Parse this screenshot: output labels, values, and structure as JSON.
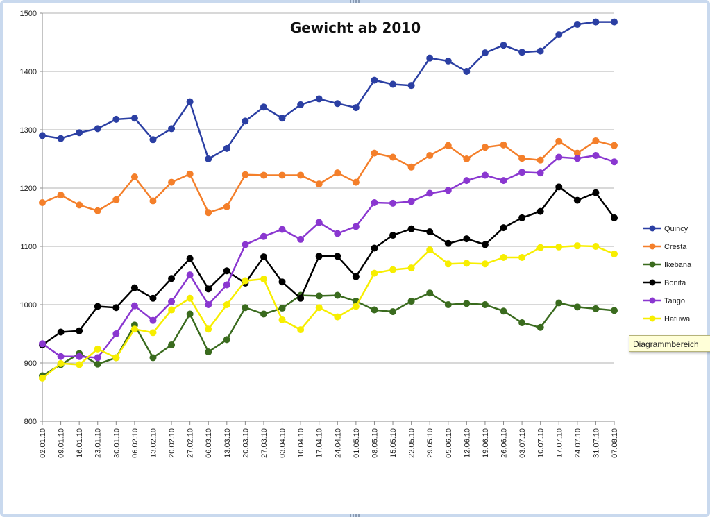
{
  "tooltip": {
    "text": "Diagrammbereich"
  },
  "colors": {
    "frame": "#c9d9ee",
    "grid": "#b0b0b0",
    "axis": "#888888"
  },
  "chart_data": {
    "type": "line",
    "title": "Gewicht ab 2010",
    "xlabel": "",
    "ylabel": "",
    "ylim": [
      800,
      1500
    ],
    "yticks": [
      800,
      900,
      1000,
      1100,
      1200,
      1300,
      1400,
      1500
    ],
    "grid": "horizontal",
    "legend_position": "right",
    "categories": [
      "02.01.10",
      "09.01.10",
      "16.01.10",
      "23.01.10",
      "30.01.10",
      "06.02.10",
      "13.02.10",
      "20.02.10",
      "27.02.10",
      "06.03.10",
      "13.03.10",
      "20.03.10",
      "27.03.10",
      "03.04.10",
      "10.04.10",
      "17.04.10",
      "24.04.10",
      "01.05.10",
      "08.05.10",
      "15.05.10",
      "22.05.10",
      "29.05.10",
      "05.06.10",
      "12.06.10",
      "19.06.10",
      "26.06.10",
      "03.07.10",
      "10.07.10",
      "17.07.10",
      "24.07.10",
      "31.07.10",
      "07.08.10"
    ],
    "series": [
      {
        "name": "Quincy",
        "color": "#2b3fa3",
        "values": [
          1290,
          1285,
          1295,
          1302,
          1318,
          1320,
          1283,
          1302,
          1348,
          1250,
          1268,
          1315,
          1339,
          1320,
          1343,
          1353,
          1345,
          1338,
          1385,
          1378,
          1376,
          1423,
          1418,
          1400,
          1432,
          1445,
          1433,
          1435,
          1463,
          1481,
          1485,
          1485
        ]
      },
      {
        "name": "Cresta",
        "color": "#f47f2a",
        "values": [
          1175,
          1188,
          1171,
          1161,
          1180,
          1219,
          1178,
          1210,
          1224,
          1158,
          1168,
          1223,
          1222,
          1222,
          1222,
          1207,
          1226,
          1210,
          1260,
          1253,
          1236,
          1256,
          1273,
          1250,
          1270,
          1274,
          1251,
          1248,
          1280,
          1260,
          1281,
          1273
        ]
      },
      {
        "name": "Ikebana",
        "color": "#3a6b1e",
        "values": [
          878,
          897,
          916,
          898,
          909,
          965,
          909,
          931,
          984,
          919,
          940,
          995,
          984,
          994,
          1016,
          1015,
          1016,
          1006,
          991,
          988,
          1006,
          1020,
          1000,
          1002,
          1000,
          989,
          969,
          961,
          1003,
          996,
          993,
          990
        ]
      },
      {
        "name": "Bonita",
        "color": "#000000",
        "values": [
          931,
          953,
          955,
          997,
          995,
          1029,
          1011,
          1045,
          1079,
          1027,
          1058,
          1037,
          1082,
          1039,
          1011,
          1083,
          1083,
          1048,
          1097,
          1119,
          1130,
          1125,
          1105,
          1113,
          1103,
          1132,
          1149,
          1160,
          1202,
          1179,
          1192,
          1149
        ]
      },
      {
        "name": "Tango",
        "color": "#8a37d0",
        "values": [
          933,
          911,
          911,
          909,
          950,
          998,
          973,
          1005,
          1051,
          1000,
          1034,
          1103,
          1117,
          1129,
          1112,
          1141,
          1122,
          1134,
          1175,
          1174,
          1177,
          1191,
          1196,
          1213,
          1222,
          1213,
          1227,
          1226,
          1253,
          1251,
          1256,
          1245
        ]
      },
      {
        "name": "Hatuwa",
        "color": "#f7ee00",
        "values": [
          874,
          899,
          897,
          924,
          909,
          958,
          952,
          991,
          1011,
          958,
          1000,
          1041,
          1044,
          974,
          957,
          995,
          979,
          997,
          1054,
          1060,
          1063,
          1094,
          1070,
          1071,
          1070,
          1081,
          1081,
          1098,
          1099,
          1101,
          1100,
          1087
        ]
      }
    ]
  }
}
